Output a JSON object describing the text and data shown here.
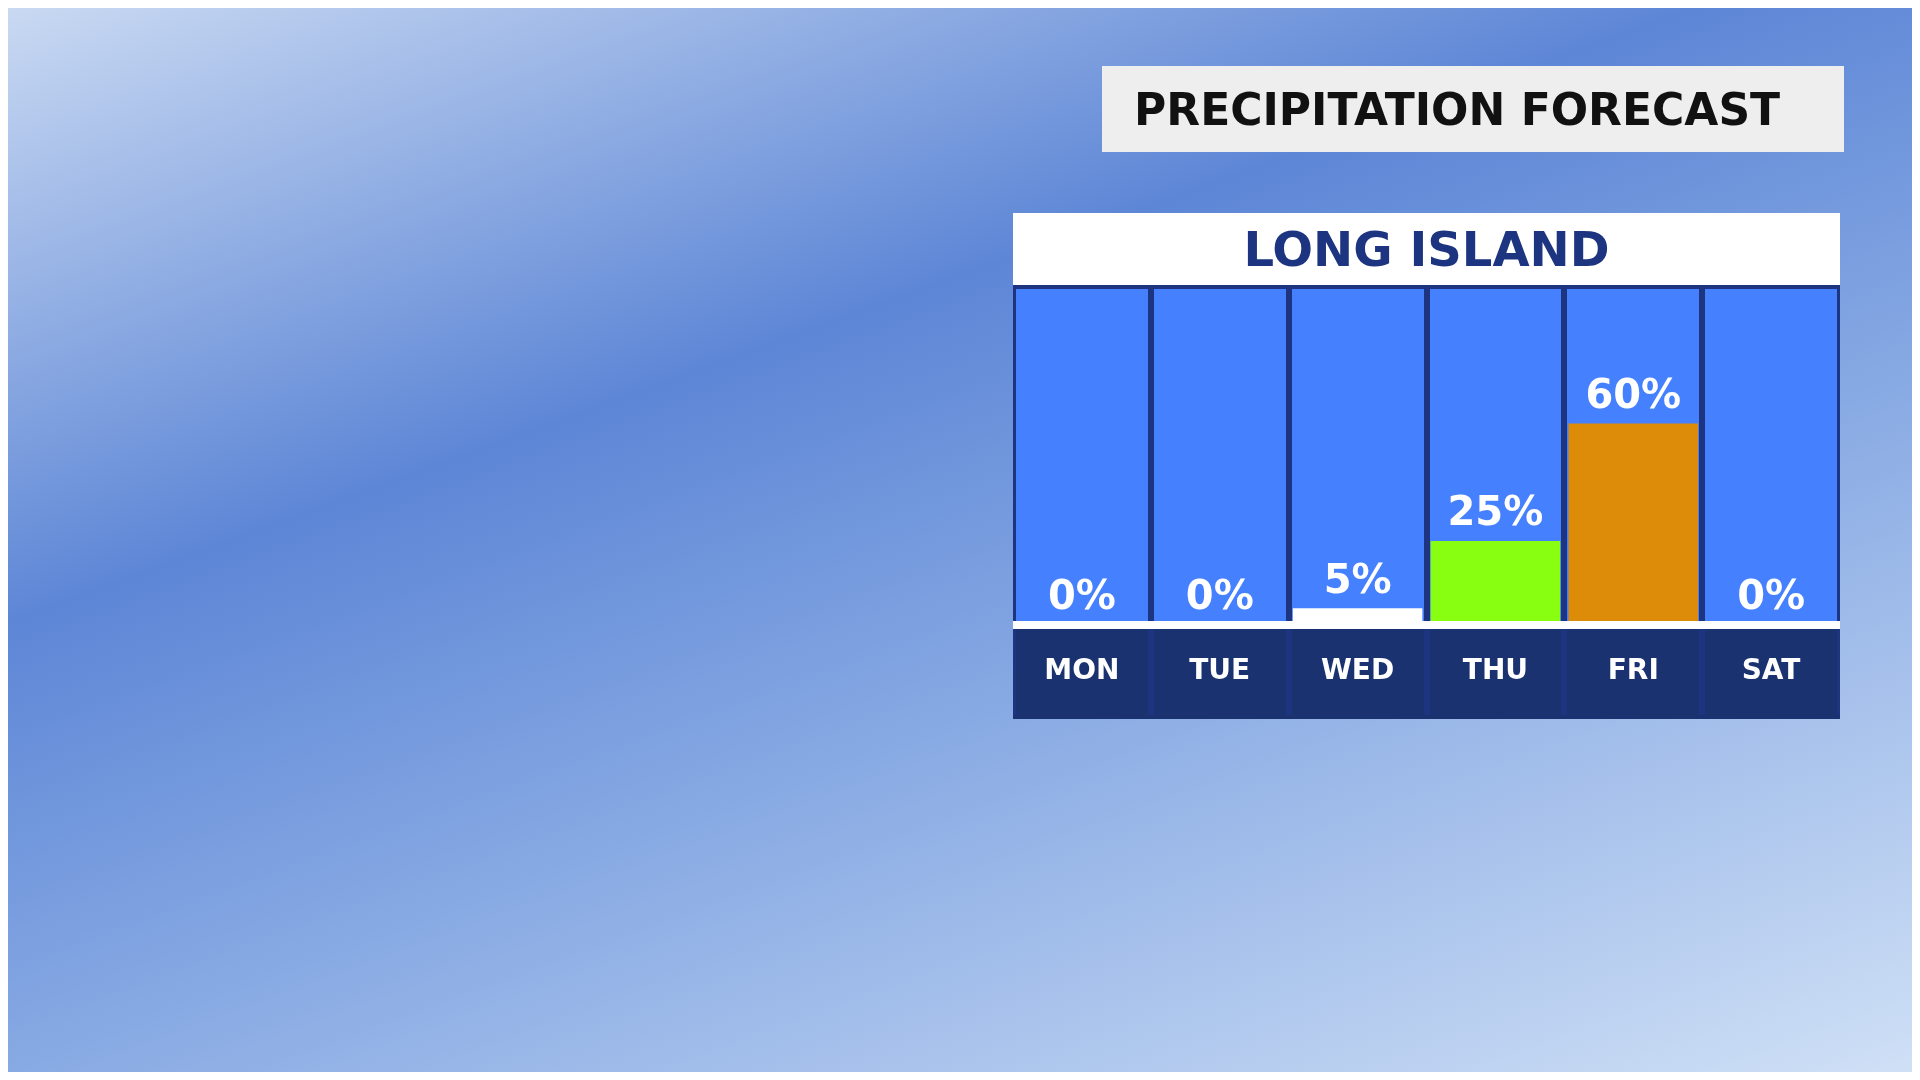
{
  "chart_data": {
    "type": "bar",
    "title": "PRECIPITATION FORECAST",
    "subtitle": "LONG ISLAND",
    "categories": [
      "MON",
      "TUE",
      "WED",
      "THU",
      "FRI",
      "SAT"
    ],
    "values": [
      0,
      0,
      5,
      25,
      60,
      0
    ],
    "colors": [
      "#ffffff",
      "#ffffff",
      "#ffffff",
      "#88ff11",
      "#dd8c0a",
      "#ffffff"
    ],
    "value_labels": [
      "0%",
      "0%",
      "5%",
      "25%",
      "60%",
      "0%"
    ],
    "grid": "x",
    "legend": false
  }
}
